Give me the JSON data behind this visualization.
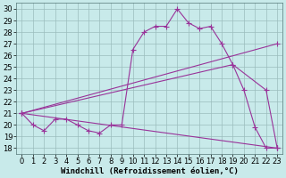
{
  "background_color": "#c8eaea",
  "grid_color": "#9bbdbd",
  "line_color": "#993399",
  "marker": "+",
  "markersize": 4,
  "linewidth": 0.8,
  "xlabel": "Windchill (Refroidissement éolien,°C)",
  "xlabel_fontsize": 6.5,
  "tick_fontsize": 6,
  "xlim": [
    -0.5,
    23.5
  ],
  "ylim": [
    17.5,
    30.5
  ],
  "yticks": [
    18,
    19,
    20,
    21,
    22,
    23,
    24,
    25,
    26,
    27,
    28,
    29,
    30
  ],
  "xticks": [
    0,
    1,
    2,
    3,
    4,
    5,
    6,
    7,
    8,
    9,
    10,
    11,
    12,
    13,
    14,
    15,
    16,
    17,
    18,
    19,
    20,
    21,
    22,
    23
  ],
  "line1_x": [
    0,
    1,
    2,
    3,
    4,
    5,
    6,
    7,
    8,
    9,
    10,
    11,
    12,
    13,
    14,
    15,
    16,
    17,
    18,
    19,
    20,
    21,
    22,
    23
  ],
  "line1_y": [
    21.0,
    20.0,
    19.5,
    20.5,
    20.5,
    20.0,
    19.5,
    19.3,
    20.0,
    20.0,
    26.5,
    28.0,
    28.5,
    28.5,
    30.0,
    28.8,
    28.3,
    28.5,
    27.0,
    25.2,
    23.0,
    19.8,
    18.0,
    18.0
  ],
  "line2_x": [
    0,
    23
  ],
  "line2_y": [
    21.0,
    27.0
  ],
  "line3_x": [
    0,
    19,
    22,
    23
  ],
  "line3_y": [
    21.0,
    25.2,
    23.0,
    18.0
  ],
  "line4_x": [
    0,
    23
  ],
  "line4_y": [
    21.0,
    18.0
  ]
}
